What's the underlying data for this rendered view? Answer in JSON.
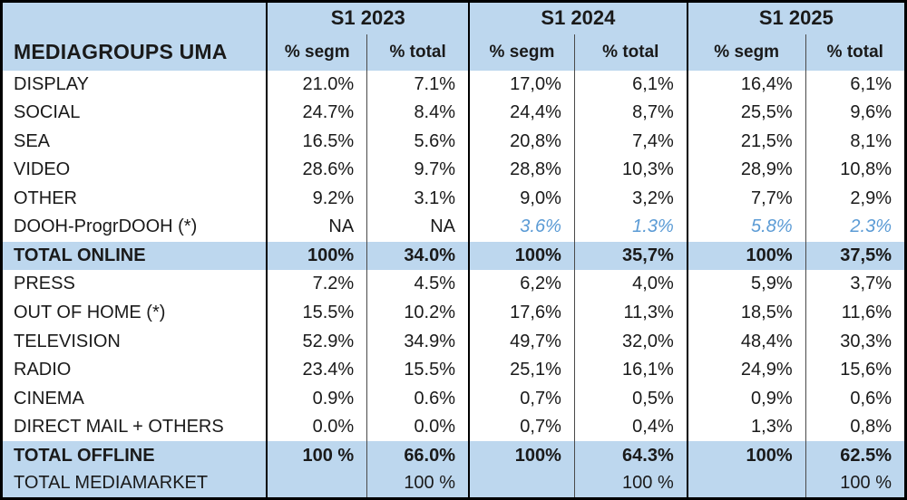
{
  "chart_data": {
    "type": "table",
    "title": "MEDIAGROUPS UMA",
    "year_groups": [
      "S1 2023",
      "S1 2024",
      "S1 2025"
    ],
    "sub_columns": [
      "% segm",
      "% total"
    ],
    "rows": [
      {
        "label": "DISPLAY",
        "values": [
          "21.0%",
          "7.1%",
          "17,0%",
          "6,1%",
          "16,4%",
          "6,1%"
        ]
      },
      {
        "label": "SOCIAL",
        "values": [
          "24.7%",
          "8.4%",
          "24,4%",
          "8,7%",
          "25,5%",
          "9,6%"
        ]
      },
      {
        "label": "SEA",
        "values": [
          "16.5%",
          "5.6%",
          "20,8%",
          "7,4%",
          "21,5%",
          "8,1%"
        ]
      },
      {
        "label": "VIDEO",
        "values": [
          "28.6%",
          "9.7%",
          "28,8%",
          "10,3%",
          "28,9%",
          "10,8%"
        ]
      },
      {
        "label": "OTHER",
        "values": [
          "9.2%",
          "3.1%",
          "9,0%",
          "3,2%",
          "7,7%",
          "2,9%"
        ]
      },
      {
        "label": "DOOH-ProgrDOOH (*)",
        "values": [
          "NA",
          "NA",
          "3.6%",
          "1.3%",
          "5.8%",
          "2.3%"
        ]
      },
      {
        "label": "TOTAL ONLINE",
        "values": [
          "100%",
          "34.0%",
          "100%",
          "35,7%",
          "100%",
          "37,5%"
        ]
      },
      {
        "label": "PRESS",
        "values": [
          "7.2%",
          "4.5%",
          "6,2%",
          "4,0%",
          "5,9%",
          "3,7%"
        ]
      },
      {
        "label": "OUT OF HOME (*)",
        "values": [
          "15.5%",
          "10.2%",
          "17,6%",
          "11,3%",
          "18,5%",
          "11,6%"
        ]
      },
      {
        "label": "TELEVISION",
        "values": [
          "52.9%",
          "34.9%",
          "49,7%",
          "32,0%",
          "48,4%",
          "30,3%"
        ]
      },
      {
        "label": "RADIO",
        "values": [
          "23.4%",
          "15.5%",
          "25,1%",
          "16,1%",
          "24,9%",
          "15,6%"
        ]
      },
      {
        "label": "CINEMA",
        "values": [
          "0.9%",
          "0.6%",
          "0,7%",
          "0,5%",
          "0,9%",
          "0,6%"
        ]
      },
      {
        "label": "DIRECT MAIL + OTHERS",
        "values": [
          "0.0%",
          "0.0%",
          "0,7%",
          "0,4%",
          "1,3%",
          "0,8%"
        ]
      },
      {
        "label": "TOTAL OFFLINE",
        "values": [
          "100 %",
          "66.0%",
          "100%",
          "64.3%",
          "100%",
          "62.5%"
        ]
      },
      {
        "label": "TOTAL MEDIAMARKET",
        "values": [
          "",
          "100 %",
          "",
          "100 %",
          "",
          "100 %"
        ]
      }
    ],
    "notes": {
      "total_rows": [
        "TOTAL ONLINE",
        "TOTAL OFFLINE"
      ],
      "subtotal_rows": [
        "TOTAL MEDIAMARKET"
      ],
      "accent_cells_row": "DOOH-ProgrDOOH (*)"
    }
  },
  "colors": {
    "header_fill": "#BDD7EE",
    "total_row_fill": "#BDD7EE",
    "accent_text": "#5B9BD5",
    "body_text": "#1A1A1A",
    "border": "#000000"
  }
}
